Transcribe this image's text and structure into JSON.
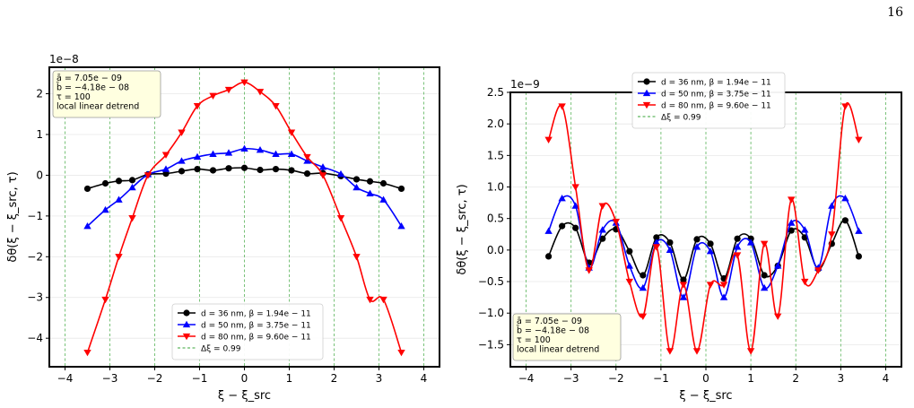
{
  "page_number": "16",
  "chart_data": [
    {
      "type": "line",
      "exponent_label": "1e−8",
      "scale": 1e-08,
      "xlabel": "ξ − ξ_src",
      "ylabel": "δθ(ξ − ξ_src, τ)",
      "xlim": [
        -4.35,
        4.35
      ],
      "ylim": [
        -4.7,
        2.65
      ],
      "xticks": [
        -4,
        -3,
        -2,
        -1,
        0,
        1,
        2,
        3,
        4
      ],
      "xtick_labels": [
        "−4",
        "−3",
        "−2",
        "−1",
        "0",
        "1",
        "2",
        "3",
        "4"
      ],
      "yticks": [
        -4,
        -3,
        -2,
        -1,
        0,
        1,
        2
      ],
      "ytick_labels": [
        "−4",
        "−3",
        "−2",
        "−1",
        "0",
        "1",
        "2"
      ],
      "grid": "y-light",
      "vlines": [
        -4,
        -3,
        -2,
        -1,
        0,
        1,
        2,
        3,
        4
      ],
      "legend_position": "lower-center",
      "annotation_position": "top-left",
      "annotation": [
        "ā = 7.05e − 09",
        "b̄ = −4.18e − 08",
        "τ = 100",
        "local linear detrend"
      ],
      "x": [
        -3.5,
        -3.1,
        -2.8,
        -2.5,
        -2.15,
        -1.75,
        -1.4,
        -1.05,
        -0.7,
        -0.35,
        0.0,
        0.35,
        0.7,
        1.05,
        1.4,
        1.75,
        2.15,
        2.5,
        2.8,
        3.1,
        3.5
      ],
      "series": [
        {
          "name": "d = 36 nm, β = 1.94e − 11",
          "color": "#000000",
          "marker": "circle",
          "values": [
            -0.33,
            -0.2,
            -0.14,
            -0.12,
            0.02,
            0.04,
            0.1,
            0.15,
            0.12,
            0.17,
            0.18,
            0.13,
            0.15,
            0.12,
            0.04,
            0.05,
            -0.02,
            -0.1,
            -0.15,
            -0.2,
            -0.33
          ]
        },
        {
          "name": "d = 50 nm, β = 3.75e − 11",
          "color": "#0000ff",
          "marker": "triangle-up",
          "values": [
            -1.25,
            -0.85,
            -0.6,
            -0.3,
            0.02,
            0.15,
            0.35,
            0.45,
            0.52,
            0.55,
            0.65,
            0.62,
            0.52,
            0.52,
            0.35,
            0.2,
            0.03,
            -0.3,
            -0.45,
            -0.6,
            -1.25
          ]
        },
        {
          "name": "d = 80 nm, β = 9.60e − 11",
          "color": "#ff0000",
          "marker": "triangle-down",
          "values": [
            -4.35,
            -3.05,
            -2.0,
            -1.05,
            0.0,
            0.5,
            1.05,
            1.7,
            1.95,
            2.1,
            2.28,
            2.05,
            1.7,
            1.05,
            0.45,
            0.0,
            -1.05,
            -2.0,
            -3.05,
            -3.05,
            -4.35
          ]
        }
      ],
      "vline_legend": "Δξ = 0.99"
    },
    {
      "type": "line",
      "exponent_label": "1e−9",
      "scale": 1e-09,
      "xlabel": "ξ − ξ_src",
      "ylabel": "δθ(ξ − ξ_src, τ)",
      "xlim": [
        -4.35,
        4.35
      ],
      "ylim": [
        -1.85,
        2.5
      ],
      "xticks": [
        -4,
        -3,
        -2,
        -1,
        0,
        1,
        2,
        3,
        4
      ],
      "xtick_labels": [
        "−4",
        "−3",
        "−2",
        "−1",
        "0",
        "1",
        "2",
        "3",
        "4"
      ],
      "yticks": [
        -1.5,
        -1.0,
        -0.5,
        0.0,
        0.5,
        1.0,
        1.5,
        2.0,
        2.5
      ],
      "ytick_labels": [
        "−1.5",
        "−1.0",
        "−0.5",
        "0.0",
        "0.5",
        "1.0",
        "1.5",
        "2.0",
        "2.5"
      ],
      "grid": "y-light",
      "vlines": [
        -4,
        -3,
        -2,
        -1,
        0,
        1,
        2,
        3,
        4
      ],
      "legend_position": "top-center",
      "annotation_position": "bottom-left",
      "annotation": [
        "ā = 7.05e − 09",
        "b̄ = −4.18e − 08",
        "τ = 100",
        "local linear detrend"
      ],
      "x": [
        -3.5,
        -3.2,
        -2.9,
        -2.6,
        -2.3,
        -2.0,
        -1.7,
        -1.4,
        -1.1,
        -0.8,
        -0.5,
        -0.2,
        0.1,
        0.4,
        0.7,
        1.0,
        1.3,
        1.6,
        1.9,
        2.2,
        2.5,
        2.8,
        3.1,
        3.4
      ],
      "series": [
        {
          "name": "d = 36 nm, β = 1.94e − 11",
          "color": "#000000",
          "marker": "circle",
          "values": [
            -0.1,
            0.38,
            0.35,
            -0.2,
            0.18,
            0.33,
            -0.02,
            -0.4,
            0.2,
            0.12,
            -0.47,
            0.17,
            0.1,
            -0.45,
            0.18,
            0.18,
            -0.4,
            -0.25,
            0.31,
            0.2,
            -0.3,
            0.1,
            0.47,
            -0.1
          ]
        },
        {
          "name": "d = 50 nm, β = 3.75e − 11",
          "color": "#0000ff",
          "marker": "triangle-up",
          "values": [
            0.3,
            0.82,
            0.7,
            -0.28,
            0.32,
            0.43,
            -0.25,
            -0.6,
            0.12,
            0.0,
            -0.75,
            0.05,
            -0.02,
            -0.75,
            0.05,
            0.12,
            -0.6,
            -0.25,
            0.43,
            0.32,
            -0.28,
            0.7,
            0.82,
            0.3
          ]
        },
        {
          "name": "d = 80 nm, β = 9.60e − 11",
          "color": "#ff0000",
          "marker": "triangle-down",
          "values": [
            1.75,
            2.28,
            1.0,
            -0.32,
            0.7,
            0.45,
            -0.5,
            -1.05,
            0.05,
            -1.6,
            -0.55,
            -1.6,
            -0.55,
            -0.55,
            -0.08,
            -1.6,
            0.1,
            -1.05,
            0.8,
            -0.5,
            -0.32,
            0.25,
            2.28,
            1.75
          ]
        }
      ],
      "vline_legend": "Δξ = 0.99"
    }
  ]
}
